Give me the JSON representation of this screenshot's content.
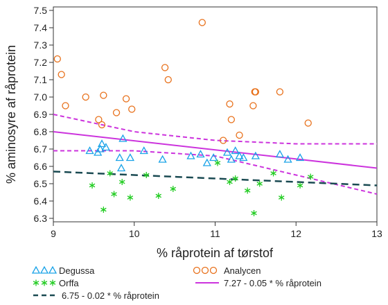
{
  "chart_data": {
    "type": "scatter",
    "title": "",
    "xlabel": "% råprotein af tørstof",
    "ylabel": "% aminosyre af råprotein",
    "xlim": [
      9,
      13
    ],
    "ylim": [
      6.28,
      7.52
    ],
    "xticks": [
      "9",
      "10",
      "11",
      "12",
      "13"
    ],
    "yticks": [
      "6.3",
      "6.4",
      "6.5",
      "6.6",
      "6.7",
      "6.8",
      "6.9",
      "7.0",
      "7.1",
      "7.2",
      "7.3",
      "7.4",
      "7.5"
    ],
    "grid": false,
    "legend_position": "bottom",
    "series": [
      {
        "name": "Degussa",
        "marker": "triangle",
        "color": "#1aa3e8",
        "x": [
          9.45,
          9.55,
          9.58,
          9.6,
          9.65,
          9.82,
          9.84,
          9.86,
          9.95,
          10.12,
          10.35,
          10.7,
          10.82,
          10.9,
          10.98,
          11.15,
          11.2,
          11.25,
          11.3,
          11.35,
          11.5,
          11.8,
          11.9,
          12.05
        ],
        "y": [
          6.69,
          6.68,
          6.7,
          6.73,
          6.71,
          6.65,
          6.59,
          6.76,
          6.65,
          6.69,
          6.64,
          6.66,
          6.67,
          6.62,
          6.65,
          6.68,
          6.64,
          6.69,
          6.66,
          6.65,
          6.66,
          6.67,
          6.64,
          6.65
        ]
      },
      {
        "name": "Orffa",
        "marker": "asterisk",
        "color": "#22cc22",
        "x": [
          9.48,
          9.62,
          9.7,
          9.75,
          9.85,
          9.95,
          10.15,
          10.3,
          10.48,
          11.03,
          11.18,
          11.25,
          11.4,
          11.48,
          11.55,
          11.72,
          11.82,
          12.05,
          12.18
        ],
        "y": [
          6.49,
          6.35,
          6.56,
          6.44,
          6.51,
          6.42,
          6.55,
          6.43,
          6.47,
          6.62,
          6.51,
          6.53,
          6.46,
          6.33,
          6.5,
          6.56,
          6.42,
          6.49,
          6.54
        ]
      },
      {
        "name": "Analycen",
        "marker": "circle",
        "color": "#e8701a",
        "x": [
          9.05,
          9.1,
          9.15,
          9.4,
          9.56,
          9.6,
          9.62,
          9.78,
          9.9,
          9.97,
          10.38,
          10.42,
          10.84,
          11.1,
          11.18,
          11.2,
          11.3,
          11.47,
          11.49,
          11.5,
          11.8,
          12.15
        ],
        "y": [
          7.22,
          7.13,
          6.95,
          7.0,
          6.87,
          6.84,
          7.01,
          6.91,
          6.99,
          6.93,
          7.17,
          7.1,
          7.43,
          6.75,
          6.96,
          6.87,
          6.78,
          6.95,
          7.03,
          7.03,
          7.03,
          6.85
        ]
      }
    ],
    "lines": [
      {
        "name": "6.75 - 0.02 * % råprotein",
        "style": "dashed",
        "color": "#1a4a52",
        "x": [
          9,
          13
        ],
        "y": [
          6.57,
          6.49
        ]
      },
      {
        "name": "7.27 - 0.05 * % råprotein",
        "style": "solid",
        "color": "#cc33dd",
        "x": [
          9,
          13
        ],
        "y": [
          6.8,
          6.59
        ]
      }
    ],
    "bands": [
      {
        "style": "dashed",
        "color": "#cc33dd",
        "upper": {
          "x": [
            9,
            10,
            11,
            12,
            13
          ],
          "y": [
            6.9,
            6.8,
            6.75,
            6.73,
            6.73
          ]
        },
        "lower": {
          "x": [
            9,
            10,
            11,
            12,
            13
          ],
          "y": [
            6.69,
            6.69,
            6.66,
            6.55,
            6.44
          ]
        }
      }
    ]
  }
}
